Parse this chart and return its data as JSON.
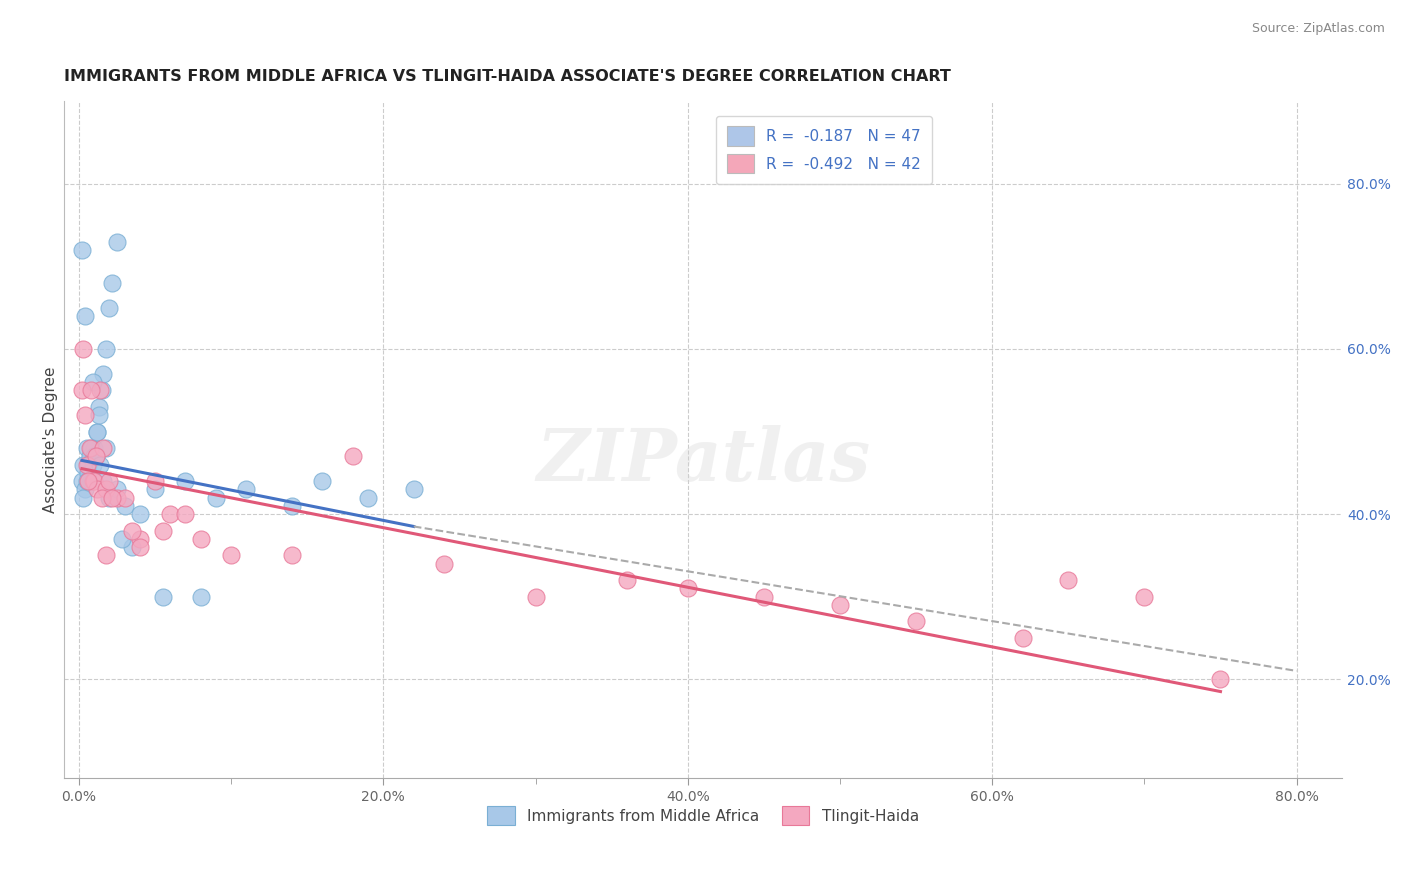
{
  "title": "IMMIGRANTS FROM MIDDLE AFRICA VS TLINGIT-HAIDA ASSOCIATE'S DEGREE CORRELATION CHART",
  "source": "Source: ZipAtlas.com",
  "ylabel": "Associate's Degree",
  "x_tick_labels": [
    "0.0%",
    "",
    "",
    "",
    "",
    "20.0%",
    "",
    "",
    "",
    "",
    "40.0%",
    "",
    "",
    "",
    "",
    "60.0%",
    "",
    "",
    "",
    "",
    "80.0%"
  ],
  "x_tick_positions": [
    0,
    4,
    8,
    12,
    16,
    20,
    24,
    28,
    32,
    36,
    40,
    44,
    48,
    52,
    56,
    60,
    64,
    68,
    72,
    76,
    80
  ],
  "x_minor_ticks": [
    10,
    20,
    30,
    40,
    50,
    60,
    70
  ],
  "y_tick_labels_right": [
    "20.0%",
    "40.0%",
    "60.0%",
    "80.0%"
  ],
  "y_tick_positions_right": [
    20,
    40,
    60,
    80
  ],
  "xlim": [
    -1,
    83
  ],
  "ylim": [
    8,
    90
  ],
  "watermark": "ZIPatlas",
  "legend_entries": [
    {
      "label": "R =  -0.187   N = 47",
      "color": "#aec6e8"
    },
    {
      "label": "R =  -0.492   N = 42",
      "color": "#f4a7b9"
    }
  ],
  "series1_color": "#a8c8e8",
  "series2_color": "#f4a8c0",
  "series1_edge": "#7aafd4",
  "series2_edge": "#e87898",
  "regression1_color": "#4472c4",
  "regression2_color": "#e05878",
  "regression_dashed_color": "#aaaaaa",
  "grid_color": "#cccccc",
  "background_color": "#ffffff",
  "series1_x": [
    0.2,
    0.3,
    0.4,
    0.5,
    0.6,
    0.7,
    0.8,
    0.9,
    1.0,
    1.1,
    1.2,
    1.3,
    1.5,
    1.6,
    1.8,
    2.0,
    2.2,
    2.5,
    0.3,
    0.5,
    0.6,
    0.8,
    1.0,
    1.2,
    1.4,
    1.6,
    2.0,
    2.5,
    3.0,
    4.0,
    5.0,
    7.0,
    9.0,
    11.0,
    14.0,
    16.0,
    19.0,
    22.0,
    5.5,
    8.0,
    3.5,
    2.8,
    1.8,
    1.3,
    0.9,
    0.4,
    0.2
  ],
  "series1_y": [
    44,
    46,
    43,
    48,
    45,
    47,
    44,
    46,
    48,
    47,
    50,
    53,
    55,
    57,
    60,
    65,
    68,
    73,
    42,
    44,
    46,
    48,
    47,
    50,
    46,
    44,
    42,
    43,
    41,
    40,
    43,
    44,
    42,
    43,
    41,
    44,
    42,
    43,
    30,
    30,
    36,
    37,
    48,
    52,
    56,
    64,
    72
  ],
  "series2_x": [
    0.2,
    0.4,
    0.5,
    0.7,
    0.9,
    1.0,
    1.2,
    1.4,
    1.6,
    1.8,
    2.0,
    2.5,
    3.0,
    4.0,
    5.0,
    6.0,
    7.0,
    8.0,
    10.0,
    14.0,
    18.0,
    24.0,
    30.0,
    36.0,
    40.0,
    45.0,
    50.0,
    55.0,
    62.0,
    65.0,
    70.0,
    75.0,
    0.6,
    1.1,
    1.5,
    2.2,
    3.5,
    5.5,
    0.3,
    0.8,
    1.8,
    4.0
  ],
  "series2_y": [
    55,
    52,
    46,
    48,
    44,
    44,
    43,
    55,
    48,
    43,
    44,
    42,
    42,
    37,
    44,
    40,
    40,
    37,
    35,
    35,
    47,
    34,
    30,
    32,
    31,
    30,
    29,
    27,
    25,
    32,
    30,
    20,
    44,
    47,
    42,
    42,
    38,
    38,
    60,
    55,
    35,
    36
  ],
  "reg1_x_start": 0.2,
  "reg1_x_end": 22.0,
  "reg1_y_start": 46.5,
  "reg1_y_end": 38.5,
  "reg2_x_start": 0.2,
  "reg2_x_end": 75.0,
  "reg2_y_start": 45.5,
  "reg2_y_end": 18.5,
  "dash_x_start": 22.0,
  "dash_x_end": 80.0,
  "dash_y_start": 38.5,
  "dash_y_end": 21.0
}
